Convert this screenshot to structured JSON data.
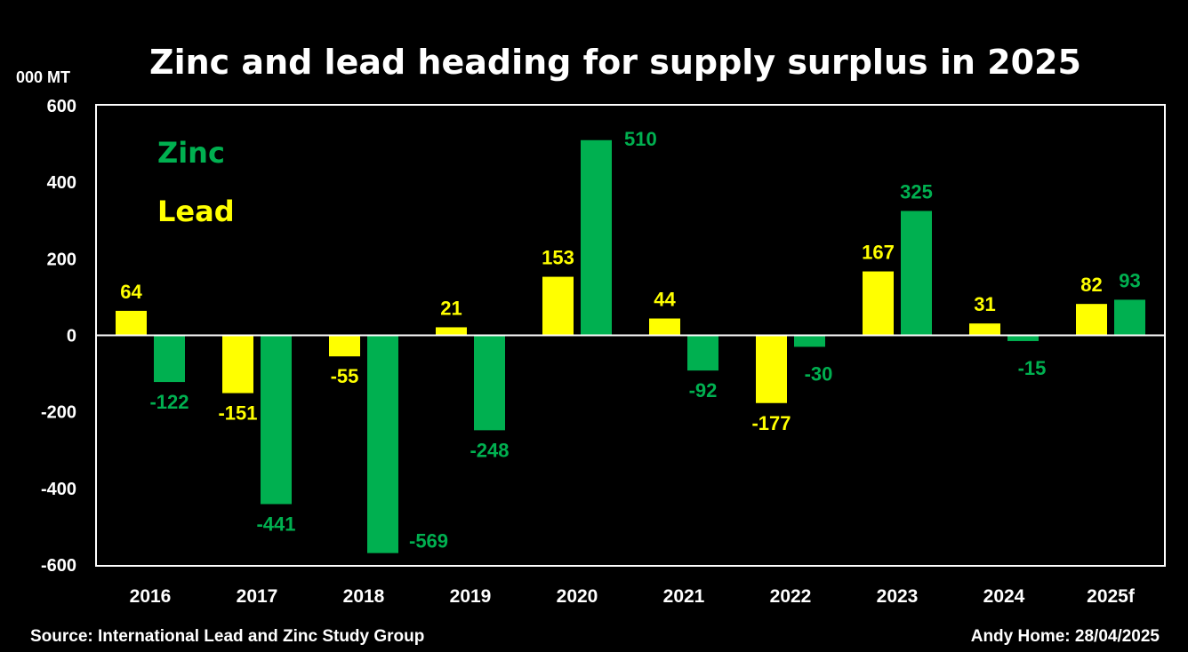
{
  "chart_data": {
    "type": "bar",
    "title": "Zinc and lead heading for supply surplus in 2025",
    "ylabel": "000 MT",
    "xlabel": "",
    "ylim": [
      -600,
      600
    ],
    "yticks": [
      600,
      400,
      200,
      0,
      -200,
      -400,
      -600
    ],
    "categories": [
      "2016",
      "2017",
      "2018",
      "2019",
      "2020",
      "2021",
      "2022",
      "2023",
      "2024",
      "2025f"
    ],
    "series": [
      {
        "name": "Lead",
        "color": "#FFFF00",
        "values": [
          64,
          -151,
          -55,
          21,
          153,
          44,
          -177,
          167,
          31,
          82
        ]
      },
      {
        "name": "Zinc",
        "color": "#00B050",
        "values": [
          -122,
          -441,
          -569,
          -248,
          510,
          -92,
          -30,
          325,
          -15,
          93
        ]
      }
    ],
    "legend": [
      "Zinc",
      "Lead"
    ],
    "legend_position": "top-left"
  },
  "footer": {
    "source": "Source: International Lead and Zinc Study Group",
    "credit": "Andy Home: 28/04/2025"
  }
}
